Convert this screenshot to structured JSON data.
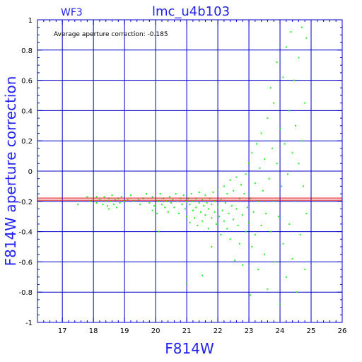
{
  "chart_data": {
    "type": "scatter",
    "title": "lmc_u4b103",
    "panel_label": "WF3",
    "annotation": "Average aperture correction: -0.185",
    "xlabel": "F814W",
    "ylabel": "F814W aperture correction",
    "xlim": [
      16.2,
      26
    ],
    "ylim": [
      -1,
      1
    ],
    "x_ticks": [
      "17",
      "18",
      "19",
      "20",
      "21",
      "22",
      "23",
      "24",
      "25",
      "26"
    ],
    "y_ticks": [
      "1",
      "0.8",
      "0.6",
      "0.4",
      "0.2",
      "0",
      "-0.2",
      "-0.4",
      "-0.6",
      "-0.8",
      "-1"
    ],
    "grid": true,
    "reference_lines": [
      {
        "name": "average",
        "y": -0.185,
        "color": "#dd0000"
      }
    ],
    "colors": {
      "axes": "#0000cc",
      "grid": "#0000cc",
      "text": "#2222ee",
      "points": "#22ee22",
      "avg_line": "#dd0000"
    },
    "series": [
      {
        "points": [
          [
            17.5,
            -0.22
          ],
          [
            17.8,
            -0.17
          ],
          [
            17.9,
            -0.2
          ],
          [
            18.0,
            -0.18
          ],
          [
            18.1,
            -0.21
          ],
          [
            18.1,
            -0.17
          ],
          [
            18.2,
            -0.19
          ],
          [
            18.3,
            -0.22
          ],
          [
            18.35,
            -0.17
          ],
          [
            18.4,
            -0.2
          ],
          [
            18.45,
            -0.23
          ],
          [
            18.5,
            -0.18
          ],
          [
            18.5,
            -0.25
          ],
          [
            18.55,
            -0.2
          ],
          [
            18.6,
            -0.16
          ],
          [
            18.65,
            -0.22
          ],
          [
            18.7,
            -0.19
          ],
          [
            18.75,
            -0.24
          ],
          [
            18.8,
            -0.18
          ],
          [
            18.85,
            -0.21
          ],
          [
            18.9,
            -0.17
          ],
          [
            19.0,
            -0.2
          ],
          [
            19.1,
            -0.19
          ],
          [
            19.2,
            -0.16
          ],
          [
            19.3,
            -0.2
          ],
          [
            19.45,
            -0.19
          ],
          [
            19.5,
            -0.22
          ],
          [
            19.6,
            -0.18
          ],
          [
            19.7,
            -0.15
          ],
          [
            19.8,
            -0.21
          ],
          [
            19.9,
            -0.17
          ],
          [
            19.9,
            -0.26
          ],
          [
            19.95,
            -0.23
          ],
          [
            20.0,
            -0.19
          ],
          [
            20.05,
            -0.28
          ],
          [
            20.1,
            -0.2
          ],
          [
            20.1,
            -0.4
          ],
          [
            20.15,
            -0.15
          ],
          [
            20.2,
            -0.22
          ],
          [
            20.25,
            -0.18
          ],
          [
            20.3,
            -0.24
          ],
          [
            20.35,
            -0.2
          ],
          [
            20.4,
            -0.27
          ],
          [
            20.45,
            -0.17
          ],
          [
            20.5,
            -0.21
          ],
          [
            20.55,
            -0.19
          ],
          [
            20.6,
            -0.24
          ],
          [
            20.65,
            -0.15
          ],
          [
            20.7,
            -0.2
          ],
          [
            20.75,
            -0.28
          ],
          [
            20.8,
            -0.18
          ],
          [
            20.85,
            -0.22
          ],
          [
            20.9,
            -0.16
          ],
          [
            20.95,
            -0.25
          ],
          [
            21.0,
            -0.2
          ],
          [
            21.0,
            -0.3
          ],
          [
            21.0,
            -0.74
          ],
          [
            21.05,
            -0.18
          ],
          [
            21.1,
            -0.22
          ],
          [
            21.1,
            -0.34
          ],
          [
            21.15,
            -0.15
          ],
          [
            21.2,
            -0.26
          ],
          [
            21.2,
            -0.2
          ],
          [
            21.25,
            -0.31
          ],
          [
            21.3,
            -0.18
          ],
          [
            21.3,
            -0.24
          ],
          [
            21.35,
            -0.36
          ],
          [
            21.4,
            -0.21
          ],
          [
            21.4,
            -0.14
          ],
          [
            21.45,
            -0.27
          ],
          [
            21.5,
            -0.19
          ],
          [
            21.5,
            -0.33
          ],
          [
            21.5,
            -0.69
          ],
          [
            21.55,
            -0.23
          ],
          [
            21.6,
            -0.16
          ],
          [
            21.6,
            -0.29
          ],
          [
            21.65,
            -0.21
          ],
          [
            21.7,
            -0.38
          ],
          [
            21.7,
            -0.25
          ],
          [
            21.75,
            -0.18
          ],
          [
            21.8,
            -0.31
          ],
          [
            21.8,
            -0.22
          ],
          [
            21.8,
            -0.5
          ],
          [
            21.85,
            -0.14
          ],
          [
            21.9,
            -0.27
          ],
          [
            21.9,
            -0.2
          ],
          [
            21.95,
            -0.35
          ],
          [
            22.0,
            -0.24
          ],
          [
            22.0,
            -0.12
          ],
          [
            22.05,
            -0.3
          ],
          [
            22.1,
            -0.19
          ],
          [
            22.1,
            -0.42
          ],
          [
            22.15,
            -0.26
          ],
          [
            22.2,
            -0.1
          ],
          [
            22.2,
            -0.33
          ],
          [
            22.25,
            -0.21
          ],
          [
            22.3,
            -0.38
          ],
          [
            22.3,
            -0.15
          ],
          [
            22.35,
            -0.28
          ],
          [
            22.4,
            -0.06
          ],
          [
            22.4,
            -0.45
          ],
          [
            22.45,
            -0.23
          ],
          [
            22.5,
            -0.32
          ],
          [
            22.5,
            -0.13
          ],
          [
            22.55,
            -0.59
          ],
          [
            22.6,
            -0.25
          ],
          [
            22.6,
            -0.04
          ],
          [
            22.65,
            -0.36
          ],
          [
            22.7,
            -0.18
          ],
          [
            22.7,
            -0.48
          ],
          [
            22.75,
            -0.09
          ],
          [
            22.8,
            -0.29
          ],
          [
            22.8,
            -0.62
          ],
          [
            22.85,
            -0.15
          ],
          [
            22.9,
            -0.4
          ],
          [
            22.9,
            -0.02
          ],
          [
            22.95,
            -0.24
          ],
          [
            23.0,
            -0.34
          ],
          [
            23.0,
            0.05
          ],
          [
            23.05,
            -0.18
          ],
          [
            23.05,
            -0.82
          ],
          [
            23.1,
            -0.5
          ],
          [
            23.1,
            0.12
          ],
          [
            23.15,
            -0.27
          ],
          [
            23.2,
            -0.08
          ],
          [
            23.2,
            -0.42
          ],
          [
            23.25,
            0.18
          ],
          [
            23.3,
            -0.2
          ],
          [
            23.3,
            -0.65
          ],
          [
            23.35,
            0.02
          ],
          [
            23.4,
            -0.36
          ],
          [
            23.4,
            0.25
          ],
          [
            23.45,
            -0.13
          ],
          [
            23.5,
            -0.55
          ],
          [
            23.5,
            0.08
          ],
          [
            23.55,
            -0.28
          ],
          [
            23.6,
            0.35
          ],
          [
            23.6,
            -0.78
          ],
          [
            23.65,
            -0.05
          ],
          [
            23.7,
            0.55
          ],
          [
            23.7,
            -0.4
          ],
          [
            23.75,
            0.15
          ],
          [
            23.8,
            -0.2
          ],
          [
            23.8,
            0.45
          ],
          [
            23.85,
            -0.6
          ],
          [
            23.9,
            0.05
          ],
          [
            23.9,
            0.72
          ],
          [
            23.95,
            -0.3
          ],
          [
            24.0,
            0.28
          ],
          [
            24.0,
            -0.88
          ],
          [
            24.05,
            -0.1
          ],
          [
            24.1,
            0.62
          ],
          [
            24.1,
            -0.48
          ],
          [
            24.15,
            0.18
          ],
          [
            24.2,
            0.82
          ],
          [
            24.2,
            -0.7
          ],
          [
            24.25,
            -0.02
          ],
          [
            24.3,
            0.4
          ],
          [
            24.3,
            -0.35
          ],
          [
            24.35,
            0.92
          ],
          [
            24.4,
            0.12
          ],
          [
            24.4,
            -0.58
          ],
          [
            24.45,
            0.6
          ],
          [
            24.5,
            -0.2
          ],
          [
            24.5,
            0.3
          ],
          [
            24.55,
            -0.8
          ],
          [
            24.6,
            0.05
          ],
          [
            24.6,
            0.75
          ],
          [
            24.65,
            -0.42
          ],
          [
            24.7,
            0.2
          ],
          [
            24.7,
            0.95
          ],
          [
            24.75,
            -0.1
          ],
          [
            24.8,
            0.45
          ],
          [
            24.8,
            -0.65
          ],
          [
            24.85,
            0.88
          ],
          [
            24.85,
            -0.28
          ]
        ]
      }
    ]
  }
}
